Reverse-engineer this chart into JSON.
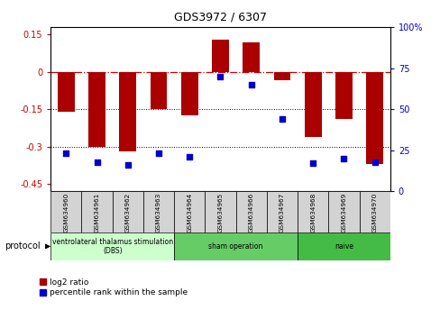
{
  "title": "GDS3972 / 6307",
  "samples": [
    "GSM634960",
    "GSM634961",
    "GSM634962",
    "GSM634963",
    "GSM634964",
    "GSM634965",
    "GSM634966",
    "GSM634967",
    "GSM634968",
    "GSM634969",
    "GSM634970"
  ],
  "log2_ratio": [
    -0.16,
    -0.3,
    -0.32,
    -0.15,
    -0.175,
    0.13,
    0.12,
    -0.035,
    -0.26,
    -0.19,
    -0.37
  ],
  "percentile_rank": [
    23,
    18,
    16,
    23,
    21,
    70,
    65,
    44,
    17,
    20,
    18
  ],
  "protocol_groups": [
    {
      "label": "ventrolateral thalamus stimulation\n(DBS)",
      "start": 0,
      "end": 3
    },
    {
      "label": "sham operation",
      "start": 4,
      "end": 7
    },
    {
      "label": "naive",
      "start": 8,
      "end": 10
    }
  ],
  "proto_colors": [
    "#ccffcc",
    "#66cc66",
    "#44bb44"
  ],
  "ylim_left": [
    -0.48,
    0.18
  ],
  "ylim_right": [
    0,
    100
  ],
  "bar_color": "#aa0000",
  "dot_color": "#0000cc",
  "hline_color": "#cc0000",
  "bg_color": "#ffffff",
  "tick_color_left": "#cc0000",
  "tick_color_right": "#0000cc",
  "left_yticks": [
    0.15,
    0,
    -0.15,
    -0.3,
    -0.45
  ],
  "right_yticks": [
    100,
    75,
    50,
    25,
    0
  ],
  "legend_items": [
    "log2 ratio",
    "percentile rank within the sample"
  ]
}
